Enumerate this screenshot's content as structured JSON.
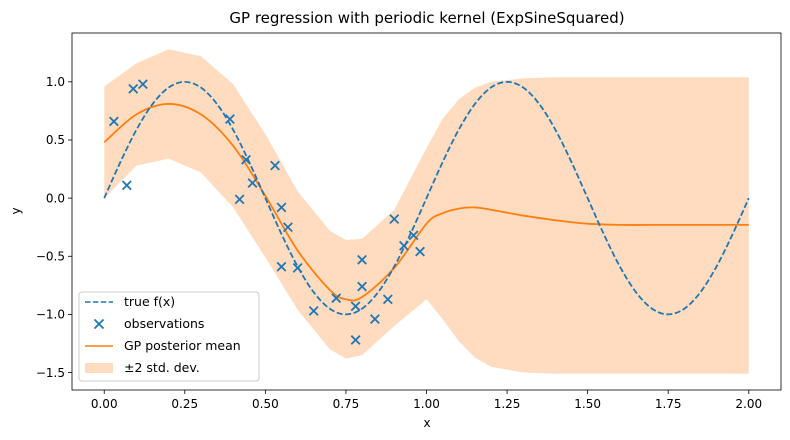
{
  "chart_data": {
    "type": "line",
    "title": "GP regression with periodic kernel (ExpSineSquared)",
    "xlabel": "x",
    "ylabel": "y",
    "xlim": [
      -0.1,
      2.1
    ],
    "ylim": [
      -1.65,
      1.42
    ],
    "grid": false,
    "legend_position": "lower-left",
    "x_ticks": [
      0.0,
      0.25,
      0.5,
      0.75,
      1.0,
      1.25,
      1.5,
      1.75,
      2.0
    ],
    "x_tick_labels": [
      "0.00",
      "0.25",
      "0.50",
      "0.75",
      "1.00",
      "1.25",
      "1.50",
      "1.75",
      "2.00"
    ],
    "y_ticks": [
      -1.5,
      -1.0,
      -0.5,
      0.0,
      0.5,
      1.0
    ],
    "y_tick_labels": [
      "−1.5",
      "−1.0",
      "−0.5",
      "0.0",
      "0.5",
      "1.0"
    ],
    "colors": {
      "true_f": "#1f77b4",
      "observations": "#1f77b4",
      "gp_mean": "#ff7f0e",
      "band": "#ffdcbf"
    },
    "series": [
      {
        "name": "true f(x)",
        "style": "dashed",
        "x": [
          0.0,
          0.05,
          0.1,
          0.15,
          0.2,
          0.25,
          0.3,
          0.35,
          0.4,
          0.45,
          0.5,
          0.55,
          0.6,
          0.65,
          0.7,
          0.75,
          0.8,
          0.85,
          0.9,
          0.95,
          1.0,
          1.05,
          1.1,
          1.15,
          1.2,
          1.25,
          1.3,
          1.35,
          1.4,
          1.45,
          1.5,
          1.55,
          1.6,
          1.65,
          1.7,
          1.75,
          1.8,
          1.85,
          1.9,
          1.95,
          2.0
        ],
        "y": [
          0.0,
          0.309,
          0.588,
          0.809,
          0.951,
          1.0,
          0.951,
          0.809,
          0.588,
          0.309,
          0.0,
          -0.309,
          -0.588,
          -0.809,
          -0.951,
          -1.0,
          -0.951,
          -0.809,
          -0.588,
          -0.309,
          0.0,
          0.309,
          0.588,
          0.809,
          0.951,
          1.0,
          0.951,
          0.809,
          0.588,
          0.309,
          0.0,
          -0.309,
          -0.588,
          -0.809,
          -0.951,
          -1.0,
          -0.951,
          -0.809,
          -0.588,
          -0.309,
          0.0
        ]
      },
      {
        "name": "observations",
        "style": "markers",
        "x": [
          0.03,
          0.07,
          0.09,
          0.12,
          0.39,
          0.42,
          0.44,
          0.46,
          0.53,
          0.55,
          0.55,
          0.57,
          0.6,
          0.65,
          0.72,
          0.78,
          0.78,
          0.8,
          0.8,
          0.84,
          0.88,
          0.9,
          0.93,
          0.96,
          0.98
        ],
        "y": [
          0.66,
          0.11,
          0.94,
          0.98,
          0.68,
          -0.01,
          0.33,
          0.13,
          0.28,
          -0.08,
          -0.59,
          -0.25,
          -0.6,
          -0.97,
          -0.86,
          -1.22,
          -0.93,
          -0.53,
          -0.76,
          -1.04,
          -0.87,
          -0.18,
          -0.41,
          -0.32,
          -0.46
        ]
      },
      {
        "name": "GP posterior mean",
        "style": "solid",
        "x": [
          0.0,
          0.1,
          0.2,
          0.3,
          0.4,
          0.5,
          0.6,
          0.7,
          0.75,
          0.8,
          0.9,
          1.0,
          1.05,
          1.1,
          1.15,
          1.2,
          1.3,
          1.4,
          1.5,
          1.6,
          1.7,
          1.8,
          1.9,
          2.0
        ],
        "y": [
          0.48,
          0.72,
          0.81,
          0.72,
          0.45,
          0.02,
          -0.45,
          -0.79,
          -0.87,
          -0.85,
          -0.6,
          -0.22,
          -0.13,
          -0.09,
          -0.08,
          -0.1,
          -0.15,
          -0.19,
          -0.22,
          -0.23,
          -0.23,
          -0.23,
          -0.23,
          -0.23
        ]
      },
      {
        "name": "±2 std. dev.",
        "style": "band",
        "x": [
          0.0,
          0.1,
          0.2,
          0.3,
          0.4,
          0.5,
          0.6,
          0.7,
          0.75,
          0.8,
          0.9,
          1.0,
          1.05,
          1.1,
          1.15,
          1.2,
          1.3,
          1.4,
          1.5,
          1.6,
          1.7,
          1.8,
          1.9,
          2.0
        ],
        "upper": [
          0.96,
          1.16,
          1.28,
          1.22,
          0.98,
          0.55,
          0.06,
          -0.28,
          -0.36,
          -0.35,
          -0.1,
          0.43,
          0.68,
          0.85,
          0.95,
          1.0,
          1.03,
          1.04,
          1.04,
          1.04,
          1.04,
          1.04,
          1.04,
          1.04
        ],
        "lower": [
          0.0,
          0.28,
          0.34,
          0.22,
          -0.08,
          -0.51,
          -0.96,
          -1.3,
          -1.38,
          -1.35,
          -1.1,
          -0.87,
          -1.04,
          -1.23,
          -1.37,
          -1.45,
          -1.5,
          -1.51,
          -1.51,
          -1.51,
          -1.51,
          -1.51,
          -1.51,
          -1.51
        ]
      }
    ]
  }
}
